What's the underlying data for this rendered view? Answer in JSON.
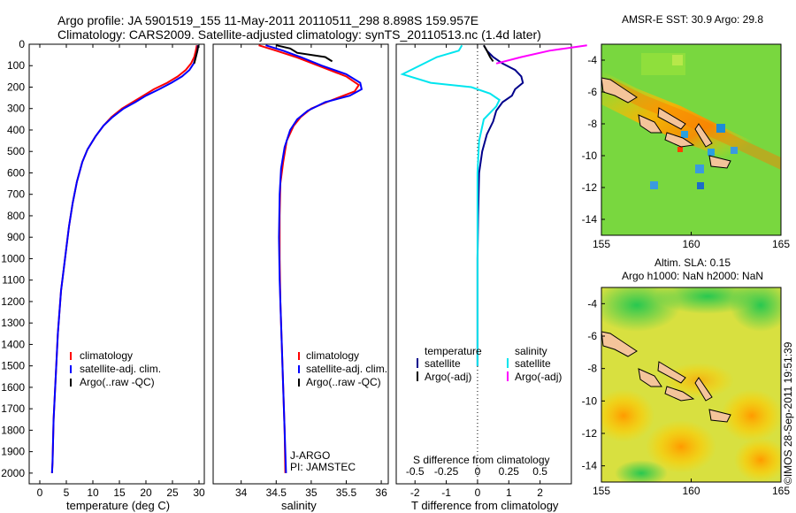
{
  "header": {
    "line1": "Argo profile: JA 5901519_155 11-May-2011 20110511_298 8.898S 159.957E",
    "line2": "Climatology: CARS2009. Satellite-adjusted climatology: synTS_20110513.nc (1.4d later)"
  },
  "colors": {
    "climatology": "#ff0000",
    "satellite": "#0000ff",
    "argo": "#000000",
    "t_sat": "#00008b",
    "s_sat": "#00e5ee",
    "s_argo": "#ff00ff",
    "land": "#f4c49a"
  },
  "chart_data": [
    {
      "type": "line",
      "xlabel": "temperature (deg C)",
      "xlim": [
        -2,
        31
      ],
      "ylim": [
        2050,
        0
      ],
      "x_ticks": [
        0,
        5,
        10,
        15,
        20,
        25,
        30
      ],
      "y_ticks": [
        0,
        100,
        200,
        300,
        400,
        500,
        600,
        700,
        800,
        900,
        1000,
        1100,
        1200,
        1300,
        1400,
        1500,
        1600,
        1700,
        1800,
        1900,
        2000
      ],
      "legend": [
        "climatology",
        "satellite-adj. clim.",
        "Argo(..raw -QC)"
      ],
      "series": [
        {
          "name": "climatology",
          "points": [
            [
              29.6,
              5
            ],
            [
              29.4,
              30
            ],
            [
              29.1,
              60
            ],
            [
              28.5,
              90
            ],
            [
              27.5,
              120
            ],
            [
              26,
              150
            ],
            [
              24,
              180
            ],
            [
              21.5,
              210
            ],
            [
              19.5,
              240
            ],
            [
              17.5,
              270
            ],
            [
              15.5,
              300
            ],
            [
              13.5,
              340
            ],
            [
              12,
              380
            ],
            [
              10.5,
              430
            ],
            [
              9,
              490
            ],
            [
              8,
              550
            ],
            [
              7,
              640
            ],
            [
              6.2,
              740
            ],
            [
              5.5,
              850
            ],
            [
              5,
              950
            ],
            [
              4.5,
              1050
            ],
            [
              4,
              1150
            ],
            [
              3.7,
              1250
            ],
            [
              3.4,
              1350
            ],
            [
              3.2,
              1450
            ],
            [
              3,
              1550
            ],
            [
              2.8,
              1650
            ],
            [
              2.6,
              1750
            ],
            [
              2.5,
              1850
            ],
            [
              2.4,
              1950
            ],
            [
              2.3,
              2000
            ]
          ]
        },
        {
          "name": "satellite-adj. clim.",
          "points": [
            [
              29.8,
              5
            ],
            [
              29.7,
              30
            ],
            [
              29.4,
              60
            ],
            [
              29,
              90
            ],
            [
              28.2,
              120
            ],
            [
              26.8,
              150
            ],
            [
              24.8,
              180
            ],
            [
              22.5,
              210
            ],
            [
              20,
              240
            ],
            [
              18,
              270
            ],
            [
              15.8,
              300
            ],
            [
              13.7,
              340
            ],
            [
              12,
              380
            ],
            [
              10.5,
              430
            ],
            [
              9,
              490
            ],
            [
              8,
              550
            ],
            [
              7,
              640
            ],
            [
              6.2,
              740
            ],
            [
              5.5,
              850
            ],
            [
              5,
              950
            ],
            [
              4.5,
              1050
            ],
            [
              4,
              1150
            ],
            [
              3.7,
              1250
            ],
            [
              3.4,
              1350
            ],
            [
              3.2,
              1450
            ],
            [
              3,
              1550
            ],
            [
              2.8,
              1650
            ],
            [
              2.6,
              1750
            ],
            [
              2.5,
              1850
            ],
            [
              2.4,
              1950
            ],
            [
              2.3,
              2000
            ]
          ]
        },
        {
          "name": "Argo(..raw -QC)",
          "points": [
            [
              29.9,
              5
            ],
            [
              29.7,
              30
            ],
            [
              29.4,
              60
            ],
            [
              29.1,
              90
            ]
          ]
        }
      ]
    },
    {
      "type": "line",
      "xlabel": "salinity",
      "xlim": [
        33.6,
        36.1
      ],
      "ylim": [
        2050,
        0
      ],
      "x_ticks": [
        34,
        34.5,
        35,
        35.5,
        36
      ],
      "legend": [
        "climatology",
        "satellite-adj. clim.",
        "Argo(..raw -QC)"
      ],
      "annotation": [
        "J-ARGO",
        "PI: JAMSTEC"
      ],
      "series": [
        {
          "name": "climatology",
          "points": [
            [
              34.25,
              5
            ],
            [
              34.5,
              30
            ],
            [
              34.78,
              60
            ],
            [
              35.1,
              100
            ],
            [
              35.5,
              150
            ],
            [
              35.68,
              190
            ],
            [
              35.62,
              220
            ],
            [
              35.3,
              260
            ],
            [
              35,
              300
            ],
            [
              34.85,
              340
            ],
            [
              34.75,
              380
            ],
            [
              34.65,
              450
            ],
            [
              34.6,
              550
            ],
            [
              34.56,
              650
            ],
            [
              34.55,
              800
            ],
            [
              34.55,
              1000
            ],
            [
              34.56,
              1200
            ],
            [
              34.58,
              1400
            ],
            [
              34.6,
              1600
            ],
            [
              34.62,
              1800
            ],
            [
              34.63,
              2000
            ]
          ]
        },
        {
          "name": "satellite-adj. clim.",
          "points": [
            [
              34.35,
              5
            ],
            [
              34.6,
              30
            ],
            [
              34.85,
              60
            ],
            [
              35.15,
              100
            ],
            [
              35.5,
              140
            ],
            [
              35.7,
              180
            ],
            [
              35.72,
              210
            ],
            [
              35.55,
              240
            ],
            [
              35.2,
              270
            ],
            [
              34.95,
              310
            ],
            [
              34.8,
              350
            ],
            [
              34.7,
              400
            ],
            [
              34.62,
              480
            ],
            [
              34.57,
              580
            ],
            [
              34.55,
              700
            ],
            [
              34.54,
              900
            ],
            [
              34.55,
              1100
            ],
            [
              34.57,
              1300
            ],
            [
              34.59,
              1500
            ],
            [
              34.61,
              1700
            ],
            [
              34.63,
              1900
            ],
            [
              34.64,
              2000
            ]
          ]
        },
        {
          "name": "Argo(..raw -QC)",
          "points": [
            [
              34.5,
              5
            ],
            [
              34.7,
              20
            ],
            [
              34.8,
              40
            ],
            [
              35.2,
              60
            ],
            [
              35.3,
              80
            ]
          ]
        }
      ]
    },
    {
      "type": "line",
      "xlabel": "T difference from climatology",
      "xlabel_top": "S difference from climatology",
      "xlim": [
        -2.6,
        3
      ],
      "ylim": [
        2050,
        0
      ],
      "x_ticks": [
        -2,
        -1,
        0,
        1,
        2
      ],
      "x_ticks_top": [
        "-0.5",
        "-0.25",
        "0",
        "0.25",
        "0.5"
      ],
      "legend_t": [
        "temperature",
        "satellite",
        "Argo(-adj)"
      ],
      "legend_s": [
        "salinity",
        "satellite",
        "Argo(-adj)"
      ],
      "series": [
        {
          "name": "temperature satellite",
          "points": [
            [
              0.2,
              5
            ],
            [
              0.3,
              30
            ],
            [
              0.5,
              60
            ],
            [
              0.8,
              90
            ],
            [
              1.2,
              120
            ],
            [
              1.4,
              150
            ],
            [
              1.45,
              180
            ],
            [
              1.2,
              210
            ],
            [
              1.1,
              240
            ],
            [
              0.8,
              270
            ],
            [
              0.6,
              310
            ],
            [
              0.5,
              360
            ],
            [
              0.3,
              420
            ],
            [
              0.15,
              500
            ],
            [
              0.05,
              600
            ],
            [
              0.02,
              800
            ],
            [
              0,
              1000
            ],
            [
              0,
              1400
            ],
            [
              0,
              1500
            ]
          ]
        },
        {
          "name": "salinity satellite",
          "points": [
            [
              -0.5,
              5
            ],
            [
              -0.6,
              30
            ],
            [
              -1.3,
              60
            ],
            [
              -2.4,
              140
            ],
            [
              -1.5,
              180
            ],
            [
              -0.2,
              200
            ],
            [
              0.4,
              230
            ],
            [
              0.7,
              260
            ],
            [
              0.6,
              290
            ],
            [
              0.2,
              350
            ],
            [
              0.05,
              450
            ],
            [
              0,
              600
            ],
            [
              0,
              1000
            ],
            [
              0,
              1300
            ],
            [
              0,
              1500
            ]
          ]
        },
        {
          "name": "temperature Argo(-adj)",
          "points": [
            [
              0.2,
              5
            ],
            [
              0.3,
              30
            ],
            [
              0.4,
              60
            ],
            [
              0.5,
              80
            ]
          ]
        },
        {
          "name": "salinity Argo(-adj)",
          "points": [
            [
              3.5,
              5
            ],
            [
              2.3,
              30
            ],
            [
              1.4,
              60
            ],
            [
              0.6,
              90
            ]
          ]
        }
      ]
    },
    {
      "type": "heatmap",
      "title": "AMSR-E SST: 30.9 Argo: 29.8",
      "xlim": [
        155,
        165
      ],
      "ylim": [
        -15,
        -3
      ],
      "x_ticks": [
        155,
        160,
        165
      ],
      "y_ticks": [
        -4,
        -6,
        -8,
        -10,
        -12,
        -14
      ]
    },
    {
      "type": "heatmap",
      "title_line1": "Altim. SLA: 0.15",
      "title_line2": "Argo h1000: NaN h2000: NaN",
      "xlim": [
        155,
        165
      ],
      "ylim": [
        -15,
        -3
      ],
      "x_ticks": [
        155,
        160,
        165
      ],
      "y_ticks": [
        -4,
        -6,
        -8,
        -10,
        -12,
        -14
      ]
    }
  ],
  "watermark": "©IMOS 28-Sep-2011 19:51:39"
}
